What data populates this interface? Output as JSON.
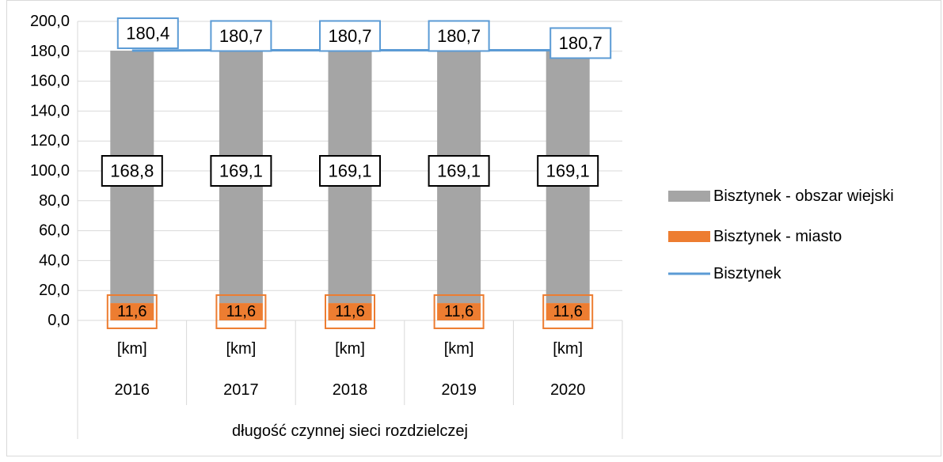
{
  "chart_data": {
    "type": "bar",
    "stacked": true,
    "x_unit_label": "[km]",
    "categories": [
      "2016",
      "2017",
      "2018",
      "2019",
      "2020"
    ],
    "group_label": "długość czynnej sieci rozdzielczej",
    "ylim": [
      0,
      200
    ],
    "yticks": [
      "0,0",
      "20,0",
      "40,0",
      "60,0",
      "80,0",
      "100,0",
      "120,0",
      "140,0",
      "160,0",
      "180,0",
      "200,0"
    ],
    "grid": true,
    "legend_position": "right",
    "series": [
      {
        "name": "Bisztynek - miasto",
        "kind": "bar",
        "color": "#ED7D31",
        "values": [
          11.6,
          11.6,
          11.6,
          11.6,
          11.6
        ],
        "labels": [
          "11,6",
          "11,6",
          "11,6",
          "11,6",
          "11,6"
        ]
      },
      {
        "name": "Bisztynek - obszar wiejski",
        "kind": "bar",
        "color": "#A5A5A5",
        "values": [
          168.8,
          169.1,
          169.1,
          169.1,
          169.1
        ],
        "labels": [
          "168,8",
          "169,1",
          "169,1",
          "169,1",
          "169,1"
        ]
      },
      {
        "name": "Bisztynek",
        "kind": "line",
        "color": "#5B9BD5",
        "values": [
          180.4,
          180.7,
          180.7,
          180.7,
          180.7
        ],
        "labels": [
          "180,4",
          "180,7",
          "180,7",
          "180,7",
          "180,7"
        ]
      }
    ],
    "legend": [
      "Bisztynek - obszar wiejski",
      "Bisztynek - miasto",
      "Bisztynek"
    ]
  }
}
